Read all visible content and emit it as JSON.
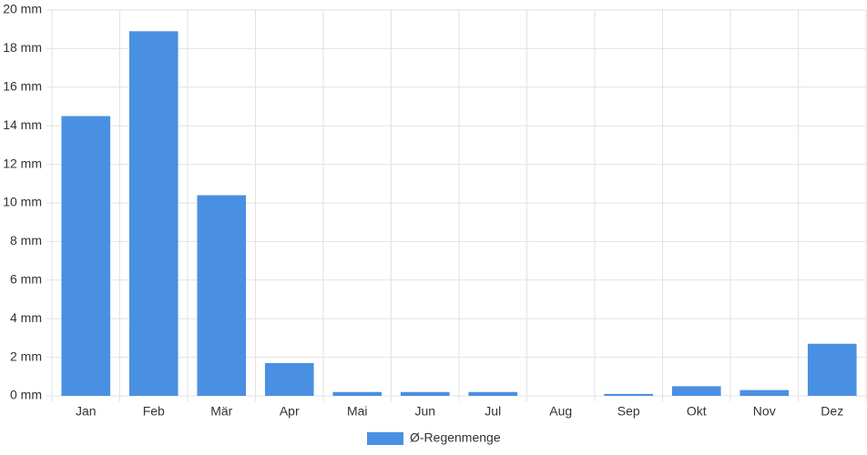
{
  "chart_data": {
    "type": "bar",
    "categories": [
      "Jan",
      "Feb",
      "Mär",
      "Apr",
      "Mai",
      "Jun",
      "Jul",
      "Aug",
      "Sep",
      "Okt",
      "Nov",
      "Dez"
    ],
    "series": [
      {
        "name": "Ø-Regenmenge",
        "color": "#4a90e2",
        "values": [
          14.5,
          18.9,
          10.4,
          1.7,
          0.2,
          0.2,
          0.2,
          0,
          0.1,
          0.5,
          0.3,
          2.7
        ]
      }
    ],
    "ylim": [
      0,
      20
    ],
    "yticks": [
      {
        "value": 0,
        "label": "0 mm"
      },
      {
        "value": 2,
        "label": "2 mm"
      },
      {
        "value": 4,
        "label": "4 mm"
      },
      {
        "value": 6,
        "label": "6 mm"
      },
      {
        "value": 8,
        "label": "8 mm"
      },
      {
        "value": 10,
        "label": "10 mm"
      },
      {
        "value": 12,
        "label": "12 mm"
      },
      {
        "value": 14,
        "label": "14 mm"
      },
      {
        "value": 16,
        "label": "16 mm"
      },
      {
        "value": 18,
        "label": "18 mm"
      },
      {
        "value": 20,
        "label": "20 mm"
      }
    ],
    "grid": true,
    "legend": "bottom"
  }
}
